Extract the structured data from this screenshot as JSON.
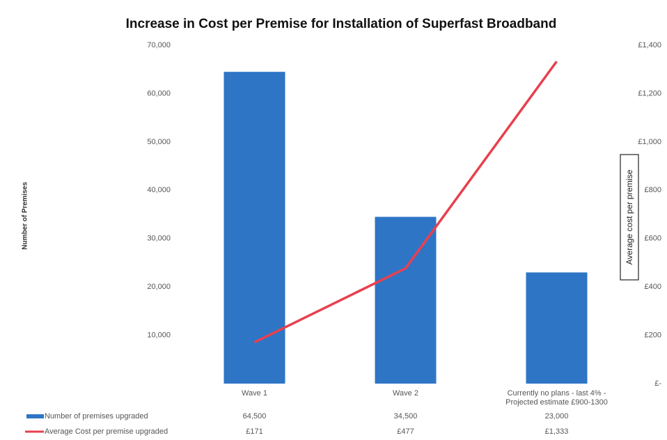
{
  "chart_data": {
    "type": "bar-line",
    "title": "Increase in Cost per Premise for Installation of Superfast Broadband",
    "y_label": "Number of Premises",
    "y2_label": "Average cost per premise",
    "categories": [
      "Wave 1",
      "Wave 2",
      "Currently no plans - last 4% - Projected estimate £900-1300"
    ],
    "series": [
      {
        "name": "Number of premises upgraded",
        "type": "bar",
        "color": "#2e75c6",
        "values": [
          64500,
          34500,
          23000
        ],
        "value_labels": [
          "64,500",
          "34,500",
          "23,000"
        ]
      },
      {
        "name": "Average Cost per premise upgraded",
        "type": "line",
        "axis": "y2",
        "color": "#e8404f",
        "values": [
          171,
          477,
          1333
        ],
        "value_labels": [
          "£171",
          "£477",
          "£1,333"
        ]
      }
    ],
    "ylim": [
      0,
      70000
    ],
    "yticks": [
      {
        "value": 10000,
        "label": "10,000"
      },
      {
        "value": 20000,
        "label": "20,000"
      },
      {
        "value": 30000,
        "label": "30,000"
      },
      {
        "value": 40000,
        "label": "40,000"
      },
      {
        "value": 50000,
        "label": "50,000"
      },
      {
        "value": 60000,
        "label": "60,000"
      },
      {
        "value": 70000,
        "label": "70,000"
      }
    ],
    "y2lim": [
      0,
      1400
    ],
    "y2ticks": [
      {
        "value": 0,
        "label": "£-"
      },
      {
        "value": 200,
        "label": "£200"
      },
      {
        "value": 400,
        "label": "£400"
      },
      {
        "value": 600,
        "label": "£600"
      },
      {
        "value": 800,
        "label": "£800"
      },
      {
        "value": 1000,
        "label": "£1,000"
      },
      {
        "value": 1200,
        "label": "£1,200"
      },
      {
        "value": 1400,
        "label": "£1,400"
      }
    ],
    "grid": false
  }
}
